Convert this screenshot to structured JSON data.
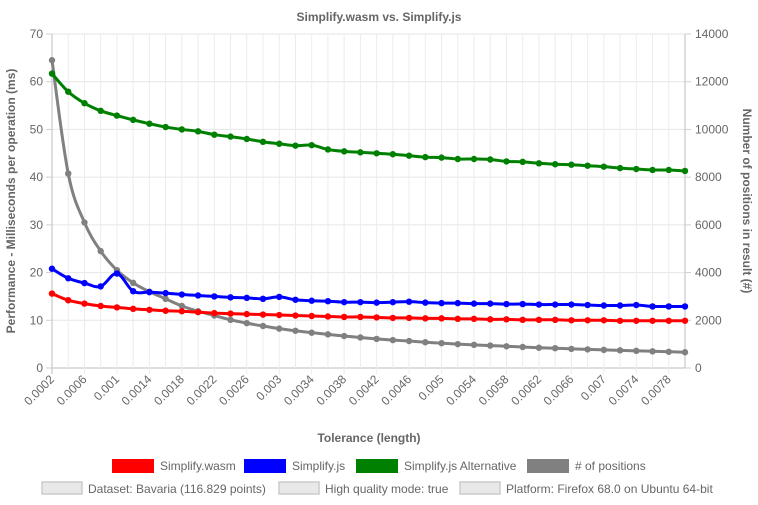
{
  "chart_data": {
    "type": "line",
    "title": "Simplify.wasm vs. Simplify.js",
    "xlabel": "Tolerance (length)",
    "ylabel_left": "Performance - Milliseconds per operation (ms)",
    "ylabel_right": "Number of positions in result (#)",
    "ylim_left": [
      0,
      70
    ],
    "ylim_right": [
      0,
      14000
    ],
    "yticks_left": [
      "0",
      "10",
      "20",
      "30",
      "40",
      "50",
      "60",
      "70"
    ],
    "yticks_right": [
      "0",
      "2000",
      "4000",
      "6000",
      "8000",
      "10000",
      "12000",
      "14000"
    ],
    "x": [
      0.0002,
      0.0004,
      0.0006,
      0.0008,
      0.001,
      0.0012,
      0.0014,
      0.0016,
      0.0018,
      0.002,
      0.0022,
      0.0024,
      0.0026,
      0.0028,
      0.003,
      0.0032,
      0.0034,
      0.0036,
      0.0038,
      0.004,
      0.0042,
      0.0044,
      0.0046,
      0.0048,
      0.005,
      0.0052,
      0.0054,
      0.0056,
      0.0058,
      0.006,
      0.0062,
      0.0064,
      0.0066,
      0.0068,
      0.007,
      0.0072,
      0.0074,
      0.0076,
      0.0078,
      0.008
    ],
    "xticks": [
      "0.0002",
      "0.0006",
      "0.001",
      "0.0014",
      "0.0018",
      "0.0022",
      "0.0026",
      "0.003",
      "0.0034",
      "0.0038",
      "0.0042",
      "0.0046",
      "0.005",
      "0.0054",
      "0.0058",
      "0.0062",
      "0.0066",
      "0.007",
      "0.0074",
      "0.0078"
    ],
    "grid": true,
    "legend_position": "bottom",
    "series": [
      {
        "name": "Simplify.wasm",
        "color": "#ff0000",
        "axis": "left",
        "values": [
          15.6,
          14.2,
          13.5,
          13.0,
          12.7,
          12.4,
          12.2,
          12.0,
          11.9,
          11.7,
          11.5,
          11.4,
          11.3,
          11.2,
          11.1,
          11.0,
          10.9,
          10.8,
          10.7,
          10.7,
          10.6,
          10.5,
          10.5,
          10.4,
          10.4,
          10.3,
          10.3,
          10.2,
          10.2,
          10.1,
          10.1,
          10.1,
          10.0,
          10.0,
          10.0,
          9.9,
          9.9,
          9.9,
          9.9,
          9.9
        ]
      },
      {
        "name": "Simplify.js",
        "color": "#0000ff",
        "axis": "left",
        "values": [
          20.8,
          18.8,
          17.8,
          17.1,
          19.8,
          16.1,
          15.9,
          15.7,
          15.4,
          15.2,
          15.0,
          14.8,
          14.7,
          14.5,
          14.9,
          14.3,
          14.1,
          14.0,
          13.8,
          13.8,
          13.7,
          13.8,
          13.9,
          13.7,
          13.6,
          13.6,
          13.5,
          13.5,
          13.4,
          13.4,
          13.3,
          13.3,
          13.3,
          13.2,
          13.1,
          13.1,
          13.2,
          12.9,
          12.9,
          12.9
        ]
      },
      {
        "name": "Simplify.js Alternative",
        "color": "#008000",
        "axis": "left",
        "values": [
          61.7,
          57.9,
          55.5,
          53.9,
          52.9,
          52.0,
          51.2,
          50.5,
          50.0,
          49.6,
          48.9,
          48.5,
          48.0,
          47.4,
          47.0,
          46.6,
          46.7,
          45.8,
          45.4,
          45.2,
          45.0,
          44.8,
          44.5,
          44.2,
          44.1,
          43.8,
          43.8,
          43.7,
          43.3,
          43.2,
          42.9,
          42.7,
          42.6,
          42.4,
          42.2,
          41.9,
          41.7,
          41.5,
          41.5,
          41.3
        ]
      },
      {
        "name": "# of positions",
        "color": "#808080",
        "axis": "right",
        "values": [
          12900,
          8150,
          6100,
          4900,
          4100,
          3570,
          3200,
          2900,
          2600,
          2380,
          2200,
          2020,
          1880,
          1760,
          1650,
          1560,
          1480,
          1410,
          1340,
          1280,
          1220,
          1170,
          1130,
          1080,
          1040,
          1000,
          970,
          940,
          910,
          880,
          850,
          830,
          800,
          780,
          760,
          740,
          720,
          700,
          680,
          660
        ]
      }
    ],
    "info_boxes": [
      "Dataset: Bavaria (116.829 points)",
      "High quality mode: true",
      "Platform: Firefox 68.0 on Ubuntu 64-bit"
    ]
  }
}
